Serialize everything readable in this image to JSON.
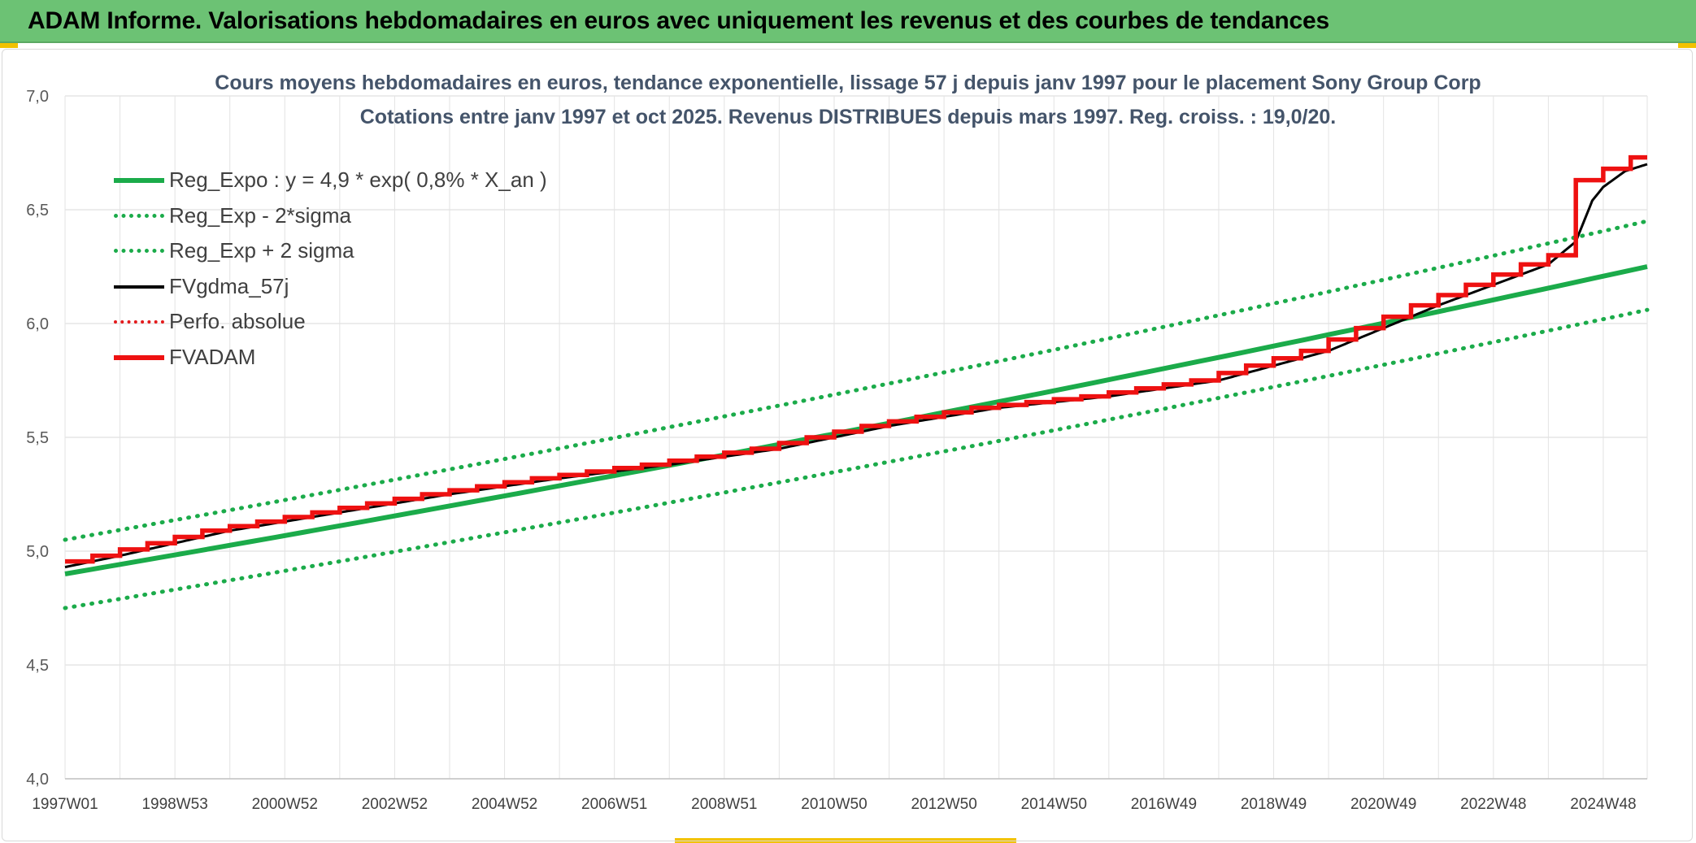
{
  "banner": {
    "title": "ADAM Informe. Valorisations hebdomadaires en euros avec uniquement les revenus et des courbes de tendances"
  },
  "chart_data": {
    "type": "line",
    "title": "Cours moyens hebdomadaires en euros, tendance exponentielle, lissage 57 j depuis janv 1997 pour le placement Sony Group Corp",
    "subtitle": "Cotations entre janv 1997 et oct 2025. Revenus DISTRIBUES depuis mars 1997. Reg. croiss. : 19,0/20.",
    "xlabel": "",
    "ylabel": "",
    "ylim": [
      4.0,
      7.0
    ],
    "xlim": [
      1997.0,
      2025.8
    ],
    "y_ticks": [
      "4,0",
      "4,5",
      "5,0",
      "5,5",
      "6,0",
      "6,5",
      "7,0"
    ],
    "x_tick_labels": [
      "1997W01",
      "1998W53",
      "2000W52",
      "2002W52",
      "2004W52",
      "2006W51",
      "2008W51",
      "2010W50",
      "2012W50",
      "2014W50",
      "2016W49",
      "2018W49",
      "2020W49",
      "2022W48",
      "2024W48"
    ],
    "grid": true,
    "legend_position": "top-left",
    "series": [
      {
        "name": "Reg_Expo : y = 4,9 * exp( 0,8% *  X_an )",
        "style": "solid",
        "color": "#1bab4a",
        "x": [
          1997.0,
          2025.8
        ],
        "y": [
          4.9,
          6.25
        ]
      },
      {
        "name": "Reg_Exp - 2*sigma",
        "style": "dotted",
        "color": "#1bab4a",
        "x": [
          1997.0,
          2025.8
        ],
        "y": [
          4.75,
          6.06
        ]
      },
      {
        "name": "Reg_Exp + 2 sigma",
        "style": "dotted",
        "color": "#1bab4a",
        "x": [
          1997.0,
          2025.8
        ],
        "y": [
          5.05,
          6.45
        ]
      },
      {
        "name": "FVgdma_57j",
        "style": "solid",
        "color": "#000000",
        "x": [
          1997.0,
          1998.0,
          2000.0,
          2002.0,
          2004.0,
          2006.0,
          2008.0,
          2010.0,
          2012.0,
          2014.0,
          2016.0,
          2018.0,
          2020.0,
          2021.0,
          2022.0,
          2023.0,
          2024.0,
          2024.5,
          2024.8,
          2025.0,
          2025.4,
          2025.8
        ],
        "y": [
          4.93,
          4.98,
          5.09,
          5.17,
          5.25,
          5.32,
          5.38,
          5.45,
          5.55,
          5.63,
          5.68,
          5.75,
          5.88,
          5.98,
          6.08,
          6.17,
          6.26,
          6.36,
          6.54,
          6.6,
          6.67,
          6.7
        ]
      },
      {
        "name": "Perfo. absolue",
        "style": "dotted",
        "color": "#e41a1c",
        "x": [
          1997.0,
          1998.0,
          2000.0,
          2002.0,
          2004.0,
          2006.0,
          2008.0,
          2010.0,
          2012.0,
          2014.0,
          2016.0,
          2018.0,
          2020.0,
          2021.0,
          2022.0,
          2023.0,
          2024.0,
          2024.5,
          2024.7,
          2025.5,
          2025.8
        ],
        "y": [
          4.93,
          4.98,
          5.09,
          5.17,
          5.25,
          5.32,
          5.38,
          5.45,
          5.55,
          5.63,
          5.68,
          5.75,
          5.88,
          5.98,
          6.08,
          6.17,
          6.26,
          6.3,
          6.6,
          6.68,
          6.73
        ]
      },
      {
        "name": "FVADAM",
        "style": "step",
        "color": "#ee1111",
        "x": [
          1997.0,
          1998.0,
          2000.0,
          2002.0,
          2004.0,
          2006.0,
          2008.0,
          2010.0,
          2012.0,
          2014.0,
          2016.0,
          2018.0,
          2020.0,
          2021.0,
          2022.0,
          2023.0,
          2024.0,
          2024.5,
          2024.7,
          2025.5,
          2025.8
        ],
        "y": [
          4.93,
          4.98,
          5.09,
          5.17,
          5.25,
          5.32,
          5.38,
          5.45,
          5.55,
          5.63,
          5.68,
          5.75,
          5.88,
          5.98,
          6.08,
          6.17,
          6.26,
          6.3,
          6.6,
          6.68,
          6.73
        ]
      }
    ]
  }
}
